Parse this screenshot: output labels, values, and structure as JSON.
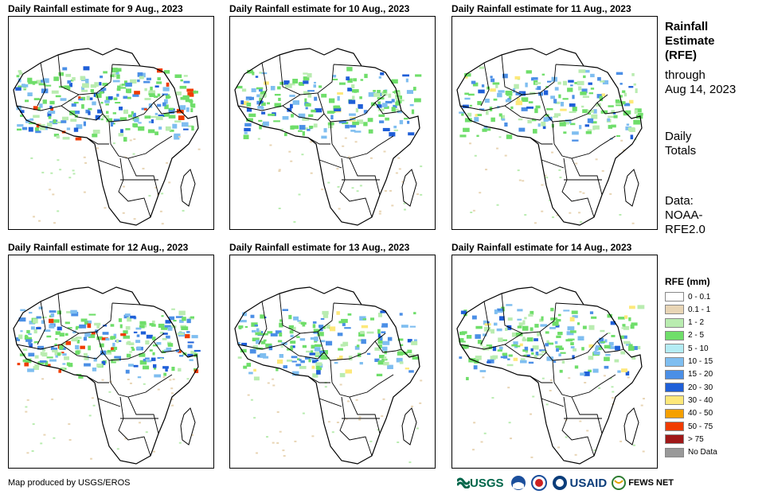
{
  "panels": [
    {
      "title": "Daily Rainfall estimate for 9 Aug., 2023",
      "intensity": "high"
    },
    {
      "title": "Daily Rainfall estimate for 10 Aug., 2023",
      "intensity": "medium"
    },
    {
      "title": "Daily Rainfall estimate for 11 Aug., 2023",
      "intensity": "medium"
    },
    {
      "title": "Daily Rainfall estimate for 12 Aug., 2023",
      "intensity": "high"
    },
    {
      "title": "Daily Rainfall estimate for 13 Aug., 2023",
      "intensity": "medium"
    },
    {
      "title": "Daily Rainfall estimate for 14 Aug., 2023",
      "intensity": "medium"
    }
  ],
  "sidebar": {
    "heading_line1": "Rainfall",
    "heading_line2": "Estimate",
    "heading_line3": "(RFE)",
    "through_line1": "through",
    "through_line2": "Aug 14, 2023",
    "daily_line1": "Daily",
    "daily_line2": "Totals",
    "data_line1": "Data:",
    "data_line2": "NOAA-",
    "data_line3": "RFE2.0"
  },
  "legend": {
    "title": "RFE (mm)",
    "items": [
      {
        "label": "0 - 0.1",
        "color": "#ffffff"
      },
      {
        "label": "0.1 - 1",
        "color": "#e8d5b5"
      },
      {
        "label": "1 - 2",
        "color": "#b9ecb0"
      },
      {
        "label": "2 - 5",
        "color": "#6fde6a"
      },
      {
        "label": "5 - 10",
        "color": "#b4ecf4"
      },
      {
        "label": "10 - 15",
        "color": "#7fbef0"
      },
      {
        "label": "15 - 20",
        "color": "#4b8fe6"
      },
      {
        "label": "20 - 30",
        "color": "#1f5fd8"
      },
      {
        "label": "30 - 40",
        "color": "#fde87a"
      },
      {
        "label": "40 - 50",
        "color": "#f5a000"
      },
      {
        "label": "50 - 75",
        "color": "#f03c00"
      },
      {
        "label": "> 75",
        "color": "#a01818"
      },
      {
        "label": "No Data",
        "color": "#999999"
      }
    ]
  },
  "credit": "Map produced by USGS/EROS",
  "logos": {
    "usgs": "USGS",
    "usaid": "USAID",
    "fews": "FEWS NET"
  }
}
